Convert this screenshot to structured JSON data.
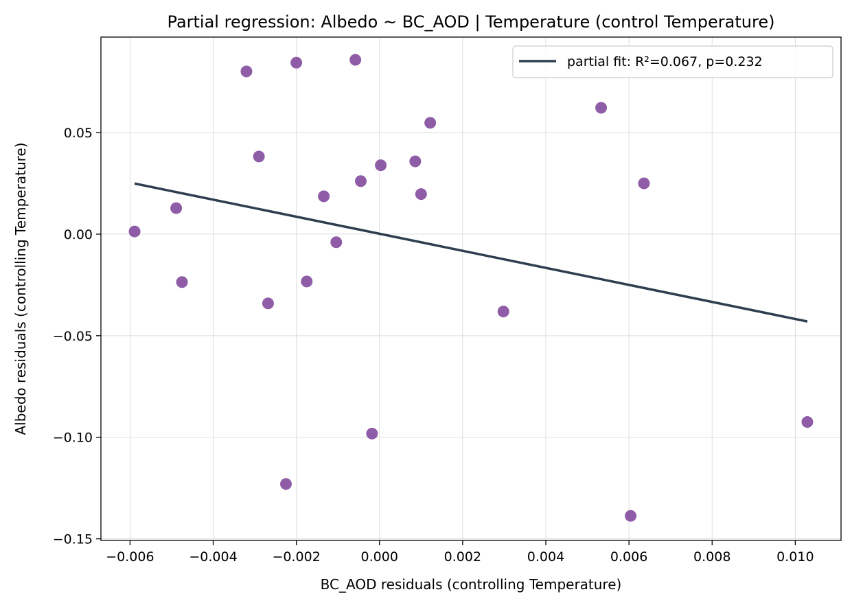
{
  "chart_data": {
    "type": "scatter",
    "title": "Partial regression: Albedo ~ BC_AOD | Temperature (control Temperature)",
    "xlabel": "BC_AOD residuals (controlling Temperature)",
    "ylabel": "Albedo residuals (controlling Temperature)",
    "xlim": [
      -0.0067,
      0.0111
    ],
    "ylim": [
      -0.1508,
      0.097
    ],
    "x_ticks": [
      -0.006,
      -0.004,
      -0.002,
      0.0,
      0.002,
      0.004,
      0.006,
      0.008,
      0.01
    ],
    "x_tick_labels": [
      "−0.006",
      "−0.004",
      "−0.002",
      "0.000",
      "0.002",
      "0.004",
      "0.006",
      "0.008",
      "0.010"
    ],
    "y_ticks": [
      -0.15,
      -0.1,
      -0.05,
      0.0,
      0.05
    ],
    "y_tick_labels": [
      "−0.15",
      "−0.10",
      "−0.05",
      "0.00",
      "0.05"
    ],
    "grid": true,
    "legend_position": "top-right",
    "series": [
      {
        "kind": "scatter",
        "color": "#7b3f98",
        "points": [
          {
            "x": -0.00589,
            "y": 0.0013
          },
          {
            "x": -0.00489,
            "y": 0.0128
          },
          {
            "x": -0.00475,
            "y": -0.0236
          },
          {
            "x": -0.0032,
            "y": 0.0801
          },
          {
            "x": -0.0029,
            "y": 0.0382
          },
          {
            "x": -0.00268,
            "y": -0.0341
          },
          {
            "x": -0.00225,
            "y": -0.123
          },
          {
            "x": -0.002,
            "y": 0.0844
          },
          {
            "x": -0.00175,
            "y": -0.0233
          },
          {
            "x": -0.00134,
            "y": 0.0186
          },
          {
            "x": -0.00104,
            "y": -0.004
          },
          {
            "x": -0.00058,
            "y": 0.0858
          },
          {
            "x": -0.00045,
            "y": 0.0261
          },
          {
            "x": -0.00018,
            "y": -0.0982
          },
          {
            "x": 3e-05,
            "y": 0.0339
          },
          {
            "x": 0.00086,
            "y": 0.0358
          },
          {
            "x": 0.001,
            "y": 0.0197
          },
          {
            "x": 0.00122,
            "y": 0.0548
          },
          {
            "x": 0.00298,
            "y": -0.0381
          },
          {
            "x": 0.00533,
            "y": 0.0622
          },
          {
            "x": 0.00604,
            "y": -0.1387
          },
          {
            "x": 0.00636,
            "y": 0.025
          },
          {
            "x": 0.01029,
            "y": -0.0925
          }
        ]
      },
      {
        "kind": "line",
        "name": "partial fit: R²=0.067, p=0.232",
        "color": "#2e3e50",
        "points": [
          {
            "x": -0.00589,
            "y": 0.0249
          },
          {
            "x": 0.01029,
            "y": -0.043
          }
        ]
      }
    ]
  }
}
